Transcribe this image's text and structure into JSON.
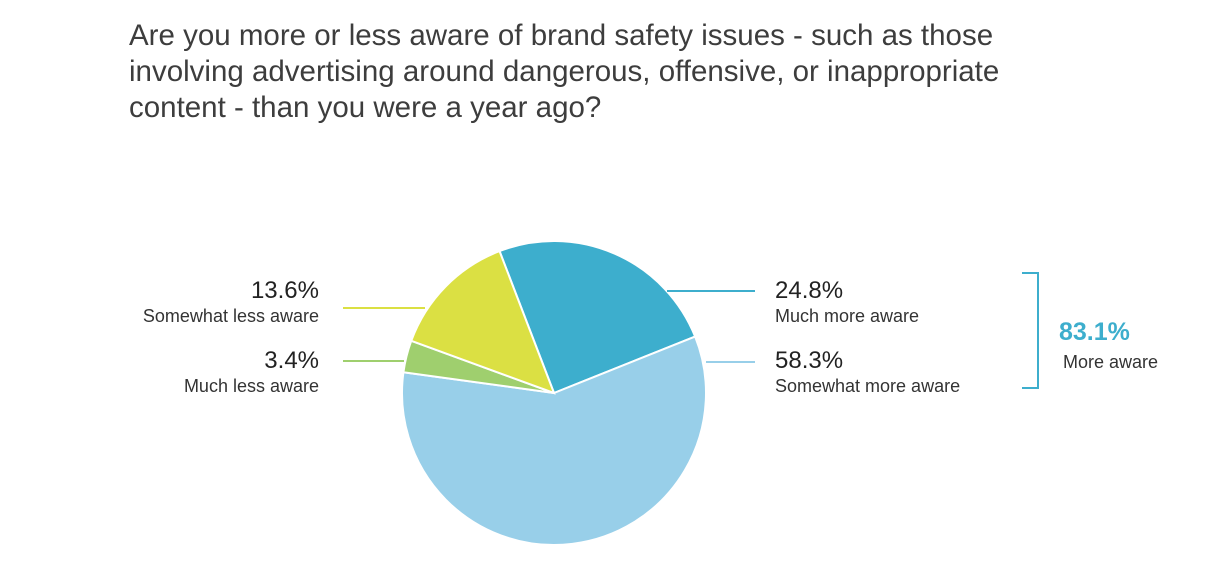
{
  "title_lines": [
    "Are you more or less aware of brand safety issues - such as those",
    "involving advertising around dangerous, offensive, or inappropriate",
    "content - than you were a year ago?"
  ],
  "chart_data": {
    "type": "pie",
    "slices": [
      {
        "label": "Much more aware",
        "value": 24.8,
        "value_text": "24.8%",
        "color": "#3daecd"
      },
      {
        "label": "Somewhat more aware",
        "value": 58.3,
        "value_text": "58.3%",
        "color": "#98cfe9"
      },
      {
        "label": "Much less aware",
        "value": 3.4,
        "value_text": "3.4%",
        "color": "#9fcf6e"
      },
      {
        "label": "Somewhat less aware",
        "value": 13.6,
        "value_text": "13.6%",
        "color": "#dbe043"
      }
    ],
    "group": {
      "value_text": "83.1%",
      "label": "More aware",
      "color": "#3daecd",
      "members": [
        "Much more aware",
        "Somewhat more aware"
      ]
    }
  }
}
